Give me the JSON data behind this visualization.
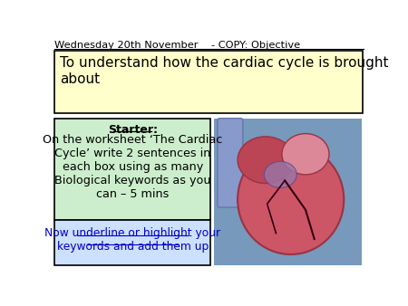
{
  "bg_color": "#ffffff",
  "title_text": "Wednesday 20th November    - COPY: Objective",
  "objective_box_color": "#ffffcc",
  "objective_box_edge": "#000000",
  "objective_text": "To understand how the cardiac cycle is brought\nabout",
  "starter_box_color": "#cceecc",
  "starter_box_edge": "#000000",
  "starter_header": "Starter:",
  "starter_body": "On the worksheet ‘The Cardiac\nCycle’ write 2 sentences in\neach box using as many\nBiological keywords as you\ncan – 5 mins",
  "highlight_box_color": "#cce0ff",
  "highlight_box_edge": "#000000",
  "highlight_text": "Now underline or highlight your\nkeywords and add them up",
  "heart_box_color": "#6688aa"
}
